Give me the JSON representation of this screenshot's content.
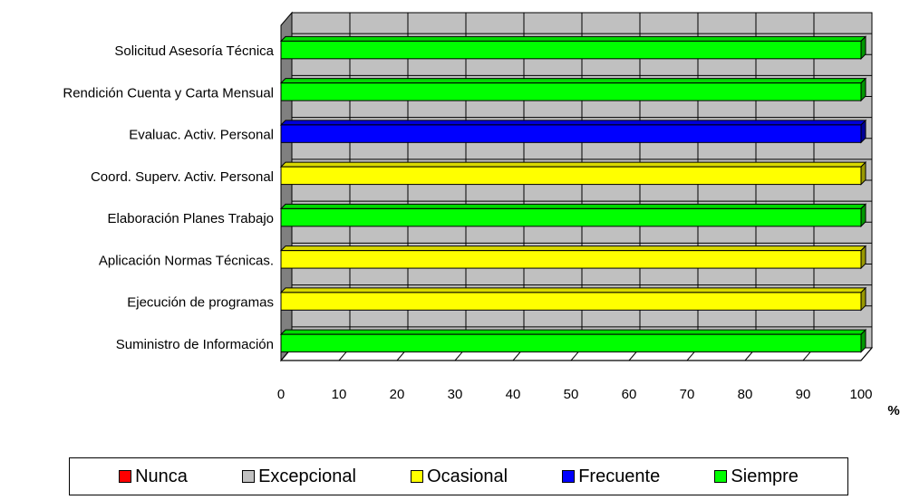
{
  "chart_data": {
    "type": "bar",
    "orientation": "horizontal",
    "stacked": true,
    "categories": [
      "Solicitud Asesoría Técnica",
      "Rendición Cuenta y Carta Mensual",
      "Evaluac. Activ. Personal",
      "Coord. Superv. Activ. Personal",
      "Elaboración Planes Trabajo",
      "Aplicación Normas Técnicas.",
      "Ejecución de programas",
      "Suministro de Información"
    ],
    "series": [
      {
        "name": "Nunca",
        "color": "#ff0000",
        "values": [
          0,
          0,
          0,
          0,
          0,
          0,
          0,
          0
        ]
      },
      {
        "name": "Excepcional",
        "color": "#c0c0c0",
        "values": [
          0,
          0,
          0,
          0,
          0,
          0,
          0,
          0
        ]
      },
      {
        "name": "Ocasional",
        "color": "#ffff00",
        "values": [
          0,
          0,
          0,
          100,
          0,
          100,
          100,
          0
        ]
      },
      {
        "name": "Frecuente",
        "color": "#0000ff",
        "values": [
          0,
          0,
          100,
          0,
          0,
          0,
          0,
          0
        ]
      },
      {
        "name": "Siempre",
        "color": "#00ff00",
        "values": [
          100,
          100,
          0,
          0,
          100,
          0,
          0,
          100
        ]
      }
    ],
    "xlim": [
      0,
      100
    ],
    "xticks": [
      0,
      10,
      20,
      30,
      40,
      50,
      60,
      70,
      80,
      90,
      100
    ],
    "x_unit_label": "%",
    "title": "",
    "xlabel": "",
    "ylabel": "",
    "legend_position": "bottom",
    "grid": true,
    "three_d": true,
    "wall_color": "#c0c0c0"
  }
}
